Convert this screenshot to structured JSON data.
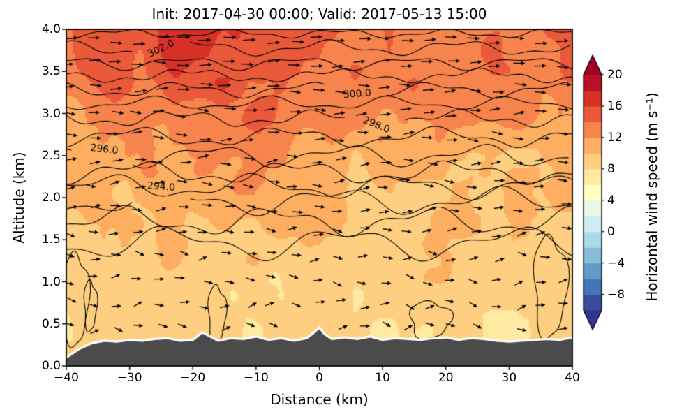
{
  "chart_data": {
    "type": "heatmap",
    "title": "Init: 2017-04-30 00:00; Valid: 2017-05-13 15:00",
    "xlabel": "Distance (km)",
    "ylabel": "Altitude (km)",
    "xlim": [
      -40,
      40
    ],
    "ylim": [
      0.0,
      4.0
    ],
    "x_tick_labels": [
      "−40",
      "−30",
      "−20",
      "−10",
      "0",
      "10",
      "20",
      "30",
      "40"
    ],
    "x_tick_values": [
      -40,
      -30,
      -20,
      -10,
      0,
      10,
      20,
      30,
      40
    ],
    "y_tick_labels": [
      "0.0",
      "0.5",
      "1.0",
      "1.5",
      "2.0",
      "2.5",
      "3.0",
      "3.5",
      "4.0"
    ],
    "y_tick_values": [
      0,
      0.5,
      1,
      1.5,
      2,
      2.5,
      3,
      3.5,
      4
    ],
    "grid": false,
    "legend": "none",
    "colorbar": {
      "label": "Horizontal wind speed (m s⁻¹)",
      "tick_labels": [
        "20",
        "16",
        "12",
        "8",
        "4",
        "0",
        "−4",
        "−8"
      ],
      "tick_values": [
        20,
        16,
        12,
        8,
        4,
        0,
        -4,
        -8
      ],
      "vmin": -10,
      "vmax": 20,
      "level_step": 2,
      "extend": "both",
      "colormap_name": "RdYlBu_r",
      "colormap": [
        "#313695",
        "#4575b4",
        "#74add1",
        "#abd9e9",
        "#e0f3f8",
        "#ffffbf",
        "#fee090",
        "#fdae61",
        "#f46d43",
        "#d73027",
        "#a50026"
      ]
    },
    "wind_speed_grid": {
      "units": "m s⁻¹",
      "x": [
        -40,
        -35,
        -30,
        -25,
        -20,
        -15,
        -10,
        -5,
        0,
        5,
        10,
        15,
        20,
        25,
        30,
        35,
        40
      ],
      "z": [
        0.0,
        0.5,
        1.0,
        1.5,
        2.0,
        2.5,
        3.0,
        3.5,
        4.0
      ],
      "values": [
        [
          8.2,
          8.0,
          8.4,
          8.2,
          8.0,
          8.4,
          8.2,
          8.0,
          8.2,
          8.4,
          8.0,
          8.2,
          8.4,
          8.2,
          8.0,
          8.2,
          8.4
        ],
        [
          8.6,
          8.4,
          8.8,
          8.6,
          8.4,
          8.8,
          8.6,
          8.4,
          8.8,
          8.8,
          8.4,
          8.6,
          8.8,
          8.6,
          8.4,
          8.6,
          8.8
        ],
        [
          9.0,
          8.8,
          9.2,
          9.2,
          8.8,
          9.2,
          9.0,
          8.8,
          9.2,
          9.2,
          8.8,
          9.0,
          9.2,
          9.0,
          8.8,
          9.0,
          9.2
        ],
        [
          9.4,
          9.2,
          9.6,
          9.6,
          9.4,
          9.8,
          9.6,
          9.4,
          9.8,
          9.6,
          9.2,
          9.4,
          9.6,
          9.4,
          9.2,
          9.4,
          9.6
        ],
        [
          10.0,
          9.8,
          10.2,
          10.4,
          10.8,
          11.4,
          11.0,
          10.4,
          10.2,
          10.0,
          9.8,
          10.0,
          10.2,
          10.0,
          9.8,
          10.0,
          10.2
        ],
        [
          10.8,
          11.0,
          11.4,
          11.8,
          12.6,
          13.4,
          12.8,
          12.0,
          11.4,
          11.0,
          10.8,
          11.2,
          11.0,
          10.8,
          11.0,
          10.8,
          11.2
        ],
        [
          12.2,
          12.4,
          12.8,
          13.2,
          13.8,
          14.0,
          13.6,
          13.0,
          12.6,
          12.6,
          12.4,
          12.8,
          12.6,
          12.4,
          12.8,
          12.4,
          12.6
        ],
        [
          13.4,
          13.8,
          14.4,
          15.2,
          16.0,
          15.8,
          15.0,
          14.2,
          13.8,
          13.6,
          13.4,
          13.8,
          13.6,
          13.4,
          13.8,
          13.4,
          13.6
        ],
        [
          14.0,
          14.4,
          15.0,
          16.0,
          16.8,
          16.4,
          15.6,
          14.8,
          14.4,
          14.0,
          13.8,
          14.2,
          14.0,
          13.8,
          14.2,
          13.8,
          14.0
        ]
      ]
    },
    "theta_contours": {
      "units": "K",
      "labeled_levels": [
        "294.0",
        "296.0",
        "298.0",
        "300.0",
        "302.0"
      ],
      "lines": [
        {
          "level": null,
          "z": 3.95,
          "a1": 0.04,
          "w1": 17,
          "p1": 0.5,
          "a2": 0.02,
          "w2": 7,
          "p2": 2.1,
          "label_x": null
        },
        {
          "level": "302.0",
          "z": 3.78,
          "a1": 0.07,
          "w1": 21,
          "p1": 1.2,
          "a2": 0.03,
          "w2": 8,
          "p2": 0.3,
          "label_x": -25
        },
        {
          "level": null,
          "z": 3.6,
          "a1": 0.06,
          "w1": 18,
          "p1": 2.8,
          "a2": 0.03,
          "w2": 9,
          "p2": 1.1,
          "label_x": null
        },
        {
          "level": null,
          "z": 3.45,
          "a1": 0.06,
          "w1": 23,
          "p1": 0.9,
          "a2": 0.03,
          "w2": 7,
          "p2": 4.0,
          "label_x": null
        },
        {
          "level": "300.0",
          "z": 3.28,
          "a1": 0.07,
          "w1": 20,
          "p1": 2.2,
          "a2": 0.03,
          "w2": 8,
          "p2": 1.7,
          "label_x": 6
        },
        {
          "level": null,
          "z": 3.12,
          "a1": 0.06,
          "w1": 19,
          "p1": 4.1,
          "a2": 0.03,
          "w2": 9,
          "p2": 0.6,
          "label_x": null
        },
        {
          "level": "298.0",
          "z": 2.94,
          "a1": 0.07,
          "w1": 22,
          "p1": 1.6,
          "a2": 0.04,
          "w2": 8,
          "p2": 2.9,
          "label_x": 9
        },
        {
          "level": null,
          "z": 2.72,
          "a1": 0.09,
          "w1": 24,
          "p1": 3.0,
          "a2": 0.04,
          "w2": 9,
          "p2": 1.4,
          "label_x": null
        },
        {
          "level": "296.0",
          "z": 2.5,
          "a1": 0.1,
          "w1": 21,
          "p1": 0.4,
          "a2": 0.05,
          "w2": 10,
          "p2": 3.3,
          "label_x": -34
        },
        {
          "level": null,
          "z": 2.3,
          "a1": 0.1,
          "w1": 25,
          "p1": 2.5,
          "a2": 0.05,
          "w2": 9,
          "p2": 0.8,
          "label_x": null
        },
        {
          "level": null,
          "z": 2.13,
          "a1": 0.11,
          "w1": 23,
          "p1": 4.4,
          "a2": 0.05,
          "w2": 10,
          "p2": 2.2,
          "label_x": null
        },
        {
          "level": "294.0",
          "z": 1.96,
          "a1": 0.12,
          "w1": 26,
          "p1": 1.0,
          "a2": 0.06,
          "w2": 11,
          "p2": 3.8,
          "label_x": -25
        },
        {
          "level": null,
          "z": 1.72,
          "a1": 0.13,
          "w1": 24,
          "p1": 3.4,
          "a2": 0.06,
          "w2": 10,
          "p2": 1.9,
          "label_x": null
        },
        {
          "level": null,
          "z": 1.46,
          "a1": 0.15,
          "w1": 27,
          "p1": 0.7,
          "a2": 0.07,
          "w2": 12,
          "p2": 2.6,
          "label_x": null
        }
      ],
      "closed": [
        {
          "cx": -38.5,
          "cz": 0.8,
          "rx": 2.0,
          "rz": 0.55
        },
        {
          "cx": -36.2,
          "cz": 0.72,
          "rx": 1.0,
          "rz": 0.3
        },
        {
          "cx": -16.2,
          "cz": 0.62,
          "rx": 1.4,
          "rz": 0.34
        },
        {
          "cx": 17.5,
          "cz": 0.55,
          "rx": 3.2,
          "rz": 0.22
        },
        {
          "cx": 36.5,
          "cz": 0.95,
          "rx": 2.6,
          "rz": 0.6
        }
      ]
    },
    "terrain": {
      "fill_color": "#4b4b4b",
      "outline_color": "#ffffff",
      "x": [
        -40,
        -38,
        -36,
        -34,
        -32,
        -30,
        -28,
        -26,
        -24,
        -22,
        -20,
        -18.5,
        -17.5,
        -16,
        -14,
        -12,
        -10,
        -8,
        -6,
        -4,
        -2,
        -0.8,
        0,
        0.8,
        2,
        4,
        6,
        8,
        10,
        12,
        14,
        16,
        18,
        20,
        22,
        24,
        26,
        28,
        30,
        32,
        34,
        36,
        38,
        40
      ],
      "z": [
        0.1,
        0.2,
        0.27,
        0.3,
        0.29,
        0.31,
        0.3,
        0.32,
        0.33,
        0.3,
        0.31,
        0.4,
        0.36,
        0.3,
        0.33,
        0.32,
        0.35,
        0.31,
        0.33,
        0.3,
        0.33,
        0.4,
        0.46,
        0.38,
        0.32,
        0.34,
        0.32,
        0.35,
        0.31,
        0.33,
        0.32,
        0.31,
        0.33,
        0.34,
        0.31,
        0.33,
        0.32,
        0.3,
        0.29,
        0.3,
        0.31,
        0.32,
        0.31,
        0.34
      ]
    },
    "quiver": {
      "color": "#000000",
      "x_start": -39.3,
      "x_step": 3.55,
      "cols": 23,
      "z_start": 0.45,
      "z_step": 0.285,
      "rows": 13
    },
    "styles": {
      "background": "#ffffff",
      "axis_color": "#000000",
      "contour_color": "#000000",
      "text_color": "#000000"
    }
  }
}
